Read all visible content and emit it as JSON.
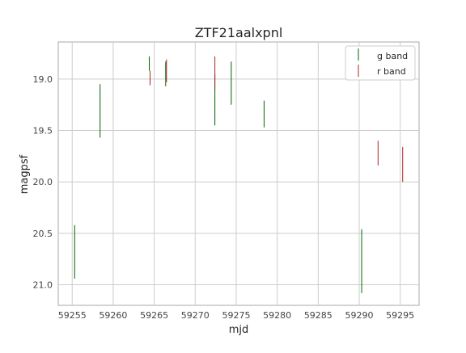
{
  "chart_data": {
    "type": "errorbar",
    "title": "ZTF21aalxpnl",
    "xlabel": "mjd",
    "ylabel": "magpsf",
    "xlim": [
      59253.3,
      59297.3
    ],
    "ylim": [
      21.2,
      18.64
    ],
    "y_inverted": true,
    "grid": true,
    "legend_position": "upper right",
    "xticks": [
      "59255",
      "59260",
      "59265",
      "59270",
      "59275",
      "59280",
      "59285",
      "59290",
      "59295"
    ],
    "yticks": [
      "19.0",
      "19.5",
      "20.0",
      "20.5",
      "21.0"
    ],
    "series": [
      {
        "name": "g band",
        "color": "#006400",
        "points": [
          {
            "x": 59255.3,
            "y": 20.68,
            "err": 0.26
          },
          {
            "x": 59258.4,
            "y": 19.31,
            "err": 0.26
          },
          {
            "x": 59264.4,
            "y": 18.85,
            "err": 0.07
          },
          {
            "x": 59266.4,
            "y": 18.95,
            "err": 0.12
          },
          {
            "x": 59272.4,
            "y": 19.2,
            "err": 0.25
          },
          {
            "x": 59274.4,
            "y": 19.04,
            "err": 0.21
          },
          {
            "x": 59278.4,
            "y": 19.34,
            "err": 0.13
          },
          {
            "x": 59290.3,
            "y": 20.77,
            "err": 0.31
          }
        ]
      },
      {
        "name": "r band",
        "color": "#b22222",
        "points": [
          {
            "x": 59264.5,
            "y": 18.99,
            "err": 0.07
          },
          {
            "x": 59266.5,
            "y": 18.92,
            "err": 0.11
          },
          {
            "x": 59272.4,
            "y": 18.94,
            "err": 0.16
          },
          {
            "x": 59292.3,
            "y": 19.72,
            "err": 0.12
          },
          {
            "x": 59295.3,
            "y": 19.83,
            "err": 0.17
          }
        ]
      }
    ]
  }
}
